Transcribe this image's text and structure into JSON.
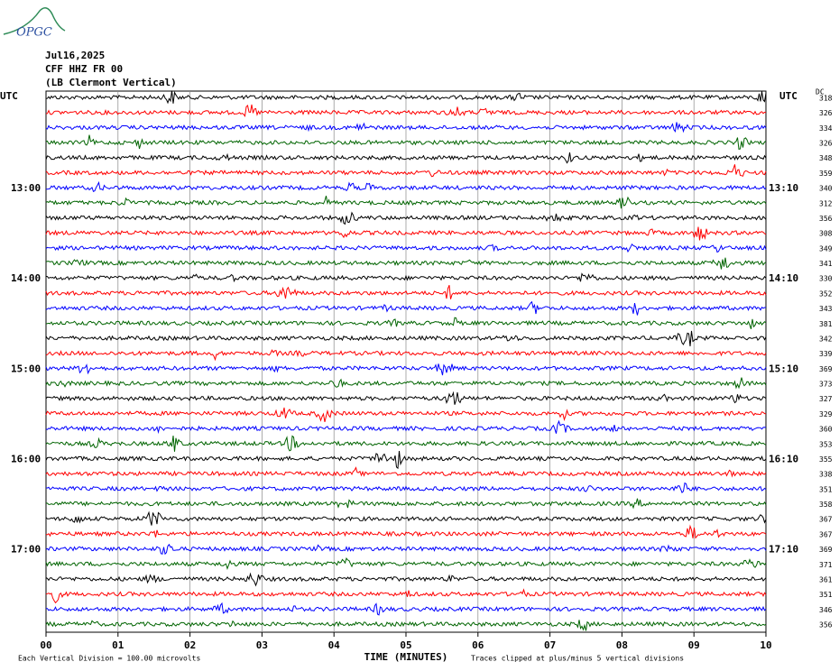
{
  "logo": "OPGC",
  "header": [
    "Jul16,2025",
    "CFF HHZ FR 00",
    "(LB  Clermont Vertical)"
  ],
  "utc_left": "UTC",
  "utc_right": "UTC",
  "dc_label": "DC",
  "colors": [
    "#000000",
    "#ff0000",
    "#0000ff",
    "#006400"
  ],
  "rows": [
    {
      "dc": "318"
    },
    {
      "dc": "326"
    },
    {
      "dc": "334"
    },
    {
      "dc": "326"
    },
    {
      "dc": "348"
    },
    {
      "dc": "359"
    },
    {
      "dc": "340",
      "left": "13:00",
      "right": "13:10"
    },
    {
      "dc": "312"
    },
    {
      "dc": "356"
    },
    {
      "dc": "308"
    },
    {
      "dc": "349"
    },
    {
      "dc": "341"
    },
    {
      "dc": "330",
      "left": "14:00",
      "right": "14:10"
    },
    {
      "dc": "352"
    },
    {
      "dc": "343"
    },
    {
      "dc": "381"
    },
    {
      "dc": "342"
    },
    {
      "dc": "339"
    },
    {
      "dc": "369",
      "left": "15:00",
      "right": "15:10"
    },
    {
      "dc": "373"
    },
    {
      "dc": "327"
    },
    {
      "dc": "329"
    },
    {
      "dc": "360"
    },
    {
      "dc": "353"
    },
    {
      "dc": "355",
      "left": "16:00",
      "right": "16:10"
    },
    {
      "dc": "338"
    },
    {
      "dc": "351"
    },
    {
      "dc": "358"
    },
    {
      "dc": "367"
    },
    {
      "dc": "367"
    },
    {
      "dc": "369",
      "left": "17:00",
      "right": "17:10"
    },
    {
      "dc": "371"
    },
    {
      "dc": "361"
    },
    {
      "dc": "351"
    },
    {
      "dc": "346"
    },
    {
      "dc": "356"
    }
  ],
  "xticks": [
    "00",
    "01",
    "02",
    "03",
    "04",
    "05",
    "06",
    "07",
    "08",
    "09",
    "10"
  ],
  "xlabel": "TIME (MINUTES)",
  "footer_left": "Each Vertical Division =  100.00 microvolts",
  "footer_right": "Traces clipped at plus/minus 5 vertical divisions"
}
